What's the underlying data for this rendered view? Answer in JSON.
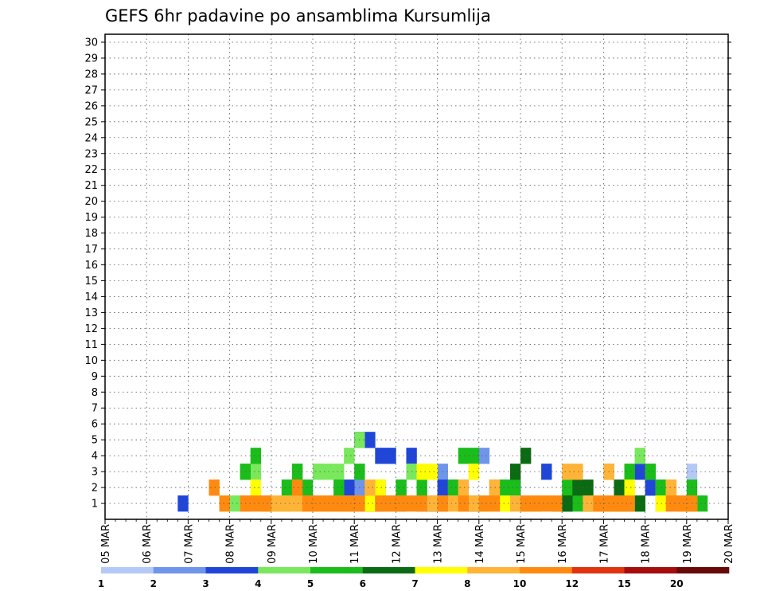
{
  "chart_data": {
    "type": "heatmap",
    "title": "GEFS 6hr padavine po ansamblima Kursumlija",
    "x_start": "05 MAR 00Z",
    "x_step_hours": 6,
    "x_ticks": [
      "05 MAR",
      "06 MAR",
      "07 MAR",
      "08 MAR",
      "09 MAR",
      "10 MAR",
      "11 MAR",
      "12 MAR",
      "13 MAR",
      "14 MAR",
      "15 MAR",
      "16 MAR",
      "17 MAR",
      "18 MAR",
      "19 MAR",
      "20 MAR"
    ],
    "y_ticks": [
      "1",
      "2",
      "3",
      "4",
      "5",
      "6",
      "7",
      "8",
      "9",
      "10",
      "11",
      "12",
      "13",
      "14",
      "15",
      "16",
      "17",
      "18",
      "19",
      "20",
      "21",
      "22",
      "23",
      "24",
      "25",
      "26",
      "27",
      "28",
      "29",
      "30"
    ],
    "legend_labels": [
      "1",
      "2",
      "3",
      "4",
      "5",
      "6",
      "7",
      "8",
      "10",
      "12",
      "15",
      "20"
    ],
    "colors": [
      "#b5c9f7",
      "#6f95eb",
      "#1f46d9",
      "#79e85c",
      "#1bbd1b",
      "#0b6b12",
      "#ffff00",
      "#ffb437",
      "#ff8a0f",
      "#e03410",
      "#a50c0c",
      "#680808"
    ],
    "cells": [
      [
        0,
        17,
        2
      ],
      [
        0,
        20,
        3
      ],
      [
        0,
        21,
        1
      ],
      [
        0,
        27,
        1
      ],
      [
        0,
        43,
        1
      ],
      [
        0,
        44,
        1
      ],
      [
        0,
        50,
        1
      ],
      [
        0,
        53,
        1
      ],
      [
        0,
        56,
        3
      ],
      [
        1,
        17,
        1
      ],
      [
        1,
        18,
        2
      ],
      [
        1,
        24,
        2
      ],
      [
        1,
        26,
        1
      ],
      [
        1,
        28,
        2
      ],
      [
        1,
        31,
        1
      ],
      [
        1,
        32,
        3
      ],
      [
        1,
        33,
        2
      ],
      [
        1,
        34,
        2
      ],
      [
        1,
        35,
        1
      ],
      [
        1,
        36,
        4
      ],
      [
        1,
        37,
        2
      ],
      [
        1,
        38,
        2
      ],
      [
        2,
        7,
        1
      ],
      [
        2,
        23,
        2
      ],
      [
        2,
        24,
        5
      ],
      [
        2,
        25,
        5
      ],
      [
        2,
        26,
        4
      ],
      [
        2,
        27,
        4
      ],
      [
        2,
        29,
        4
      ],
      [
        2,
        30,
        1
      ],
      [
        2,
        31,
        1
      ],
      [
        2,
        32,
        2
      ],
      [
        2,
        39,
        2
      ],
      [
        2,
        40,
        1
      ],
      [
        2,
        41,
        1
      ],
      [
        2,
        42,
        3
      ],
      [
        2,
        43,
        1
      ],
      [
        2,
        44,
        1
      ],
      [
        2,
        46,
        1
      ],
      [
        2,
        47,
        1
      ],
      [
        2,
        49,
        1
      ],
      [
        2,
        50,
        1
      ],
      [
        2,
        51,
        3
      ],
      [
        2,
        52,
        2
      ],
      [
        3,
        12,
        1
      ],
      [
        3,
        13,
        3
      ],
      [
        3,
        14,
        3
      ],
      [
        3,
        18,
        3
      ],
      [
        3,
        20,
        3
      ],
      [
        3,
        21,
        3
      ],
      [
        3,
        22,
        3
      ],
      [
        3,
        23,
        4
      ],
      [
        3,
        24,
        5
      ],
      [
        3,
        29,
        3
      ],
      [
        3,
        30,
        1
      ],
      [
        3,
        48,
        1
      ],
      [
        3,
        49,
        1
      ],
      [
        3,
        50,
        1
      ],
      [
        3,
        51,
        4
      ],
      [
        3,
        52,
        3
      ],
      [
        3,
        53,
        2
      ],
      [
        4,
        13,
        3
      ],
      [
        4,
        14,
        4
      ],
      [
        4,
        15,
        1
      ],
      [
        4,
        16,
        1
      ],
      [
        4,
        17,
        2
      ],
      [
        4,
        18,
        3
      ],
      [
        4,
        19,
        2
      ],
      [
        4,
        20,
        1
      ],
      [
        4,
        21,
        1
      ],
      [
        4,
        22,
        2
      ],
      [
        4,
        23,
        1
      ],
      [
        4,
        24,
        3
      ],
      [
        4,
        26,
        2
      ],
      [
        4,
        28,
        2
      ],
      [
        4,
        30,
        2
      ],
      [
        4,
        32,
        1
      ],
      [
        4,
        33,
        2
      ],
      [
        4,
        34,
        4
      ],
      [
        4,
        35,
        4
      ],
      [
        4,
        37,
        2
      ],
      [
        4,
        38,
        2
      ],
      [
        4,
        39,
        2
      ],
      [
        4,
        40,
        1
      ],
      [
        4,
        41,
        1
      ],
      [
        4,
        44,
        2
      ],
      [
        4,
        45,
        1
      ],
      [
        4,
        46,
        1
      ],
      [
        4,
        47,
        1
      ],
      [
        4,
        48,
        3
      ],
      [
        4,
        49,
        1
      ],
      [
        4,
        50,
        3
      ],
      [
        4,
        51,
        1
      ],
      [
        4,
        52,
        3
      ],
      [
        4,
        53,
        2
      ],
      [
        4,
        54,
        2
      ],
      [
        4,
        56,
        2
      ],
      [
        4,
        57,
        1
      ],
      [
        5,
        21,
        1
      ],
      [
        5,
        22,
        1
      ],
      [
        5,
        23,
        1
      ],
      [
        5,
        25,
        1
      ],
      [
        5,
        26,
        1
      ],
      [
        5,
        27,
        1
      ],
      [
        5,
        28,
        1
      ],
      [
        5,
        32,
        1
      ],
      [
        5,
        34,
        1
      ],
      [
        5,
        35,
        1
      ],
      [
        5,
        36,
        1
      ],
      [
        5,
        39,
        3
      ],
      [
        5,
        40,
        4
      ],
      [
        5,
        43,
        1
      ],
      [
        5,
        44,
        1
      ],
      [
        5,
        45,
        2
      ],
      [
        5,
        46,
        2
      ],
      [
        5,
        47,
        1
      ],
      [
        5,
        48,
        1
      ],
      [
        5,
        49,
        2
      ],
      [
        5,
        51,
        1
      ],
      [
        6,
        14,
        2
      ],
      [
        6,
        15,
        1
      ],
      [
        6,
        16,
        1
      ],
      [
        6,
        17,
        1
      ],
      [
        6,
        18,
        1
      ],
      [
        6,
        19,
        1
      ],
      [
        6,
        20,
        1
      ],
      [
        6,
        21,
        1
      ],
      [
        6,
        22,
        1
      ],
      [
        6,
        23,
        1
      ],
      [
        6,
        25,
        1
      ],
      [
        6,
        26,
        2
      ],
      [
        6,
        27,
        1
      ],
      [
        6,
        30,
        3
      ],
      [
        6,
        31,
        3
      ],
      [
        6,
        32,
        1
      ],
      [
        6,
        33,
        1
      ],
      [
        6,
        34,
        1
      ],
      [
        6,
        35,
        3
      ],
      [
        6,
        36,
        1
      ],
      [
        6,
        37,
        1
      ],
      [
        6,
        38,
        1
      ],
      [
        6,
        39,
        1
      ],
      [
        6,
        40,
        1
      ],
      [
        6,
        41,
        1
      ],
      [
        6,
        43,
        1
      ],
      [
        6,
        47,
        1
      ],
      [
        6,
        48,
        1
      ],
      [
        6,
        50,
        2
      ],
      [
        6,
        53,
        1
      ],
      [
        6,
        54,
        2
      ],
      [
        6,
        55,
        1
      ],
      [
        6,
        56,
        1
      ],
      [
        7,
        13,
        1
      ],
      [
        7,
        15,
        1
      ],
      [
        7,
        16,
        1
      ],
      [
        7,
        17,
        1
      ],
      [
        7,
        18,
        1
      ],
      [
        7,
        19,
        1
      ],
      [
        7,
        20,
        1
      ],
      [
        7,
        21,
        1
      ],
      [
        7,
        22,
        1
      ],
      [
        7,
        24,
        1
      ],
      [
        7,
        25,
        2
      ],
      [
        7,
        26,
        1
      ],
      [
        7,
        27,
        1
      ],
      [
        7,
        28,
        1
      ],
      [
        7,
        31,
        1
      ],
      [
        7,
        32,
        1
      ],
      [
        7,
        33,
        1
      ],
      [
        7,
        34,
        2
      ],
      [
        7,
        35,
        1
      ],
      [
        7,
        37,
        2
      ],
      [
        7,
        39,
        1
      ],
      [
        7,
        44,
        3
      ],
      [
        7,
        45,
        3
      ],
      [
        7,
        46,
        1
      ],
      [
        7,
        47,
        1
      ],
      [
        7,
        48,
        3
      ],
      [
        7,
        49,
        1
      ],
      [
        7,
        54,
        2
      ],
      [
        7,
        55,
        1
      ],
      [
        7,
        56,
        1
      ],
      [
        8,
        10,
        2
      ],
      [
        8,
        11,
        1
      ],
      [
        8,
        13,
        1
      ],
      [
        8,
        14,
        1
      ],
      [
        8,
        15,
        1
      ],
      [
        8,
        18,
        2
      ],
      [
        8,
        19,
        1
      ],
      [
        8,
        20,
        1
      ],
      [
        8,
        21,
        1
      ],
      [
        8,
        22,
        1
      ],
      [
        8,
        23,
        1
      ],
      [
        8,
        24,
        1
      ],
      [
        8,
        26,
        1
      ],
      [
        8,
        27,
        1
      ],
      [
        8,
        28,
        1
      ],
      [
        8,
        29,
        1
      ],
      [
        8,
        30,
        1
      ],
      [
        8,
        32,
        1
      ],
      [
        8,
        34,
        1
      ],
      [
        8,
        36,
        1
      ],
      [
        8,
        37,
        1
      ],
      [
        8,
        40,
        1
      ],
      [
        8,
        41,
        1
      ],
      [
        8,
        42,
        1
      ],
      [
        8,
        43,
        1
      ],
      [
        8,
        47,
        1
      ],
      [
        8,
        48,
        1
      ],
      [
        8,
        49,
        1
      ],
      [
        8,
        50,
        1
      ],
      [
        8,
        54,
        1
      ],
      [
        8,
        55,
        1
      ],
      [
        8,
        56,
        1
      ]
    ]
  }
}
